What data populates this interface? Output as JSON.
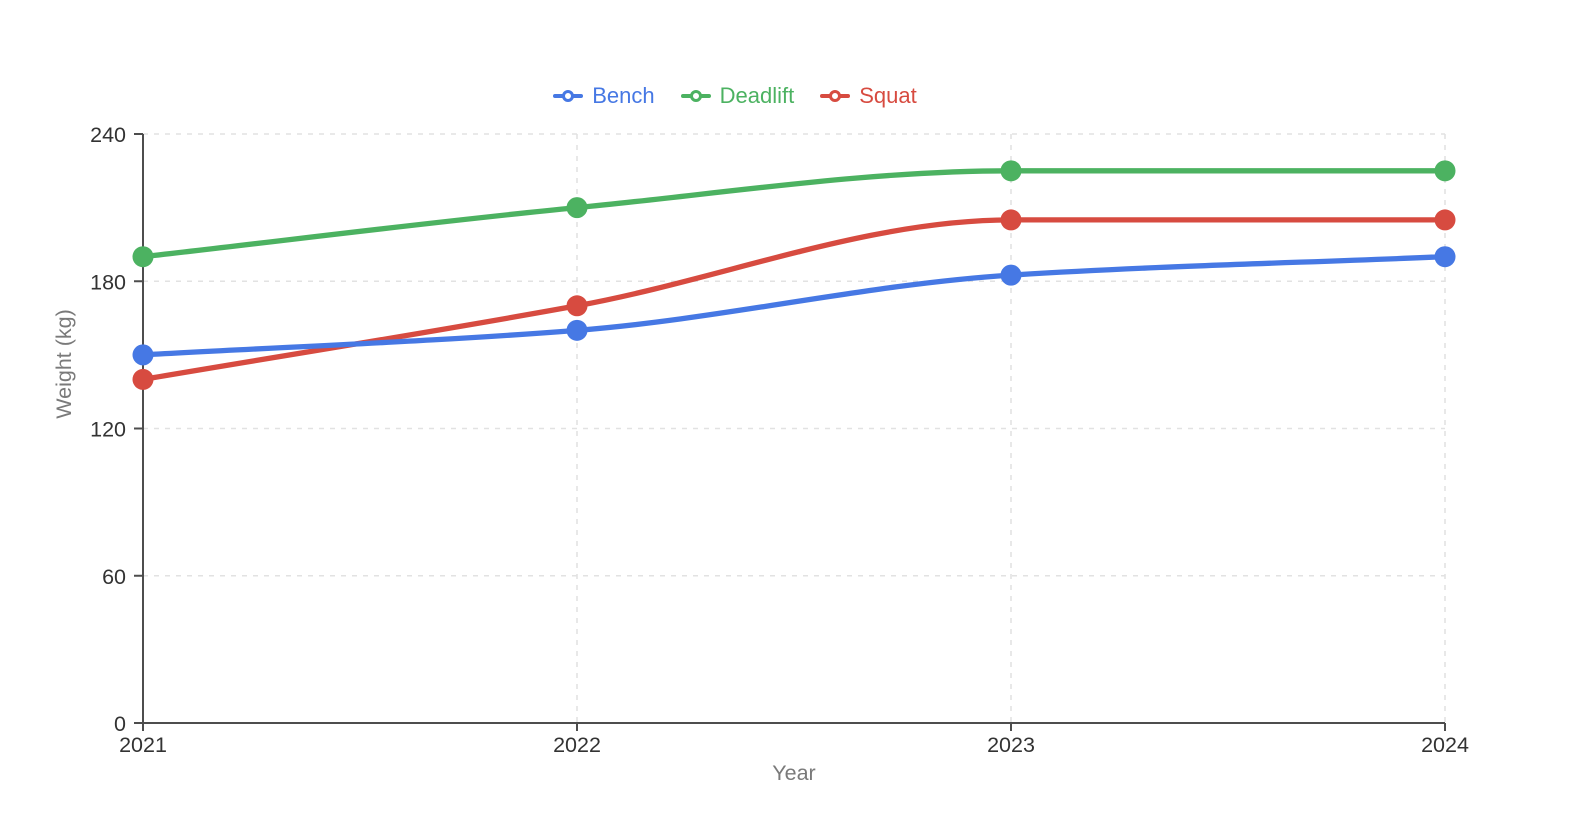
{
  "chart_data": {
    "type": "line",
    "title": "",
    "x": [
      "2021",
      "2022",
      "2023",
      "2024"
    ],
    "series": [
      {
        "name": "Bench",
        "color": "#4678E4",
        "values": [
          150,
          160,
          182.5,
          190
        ]
      },
      {
        "name": "Deadlift",
        "color": "#4CB261",
        "values": [
          190,
          210,
          225,
          225
        ]
      },
      {
        "name": "Squat",
        "color": "#D74B40",
        "values": [
          140,
          170,
          205,
          205
        ]
      }
    ],
    "xlabel": "Year",
    "ylabel": "Weight (kg)",
    "ylim": [
      0,
      240
    ],
    "yticks": [
      0,
      60,
      120,
      180,
      240
    ],
    "grid": true,
    "legend_position": "top",
    "curve": "monotone"
  },
  "colors": {
    "grid": "#e2e2e2",
    "axis": "#4d4d4d",
    "tick_label": "#333333",
    "axis_title": "#7a7a7a",
    "background": "#ffffff"
  }
}
